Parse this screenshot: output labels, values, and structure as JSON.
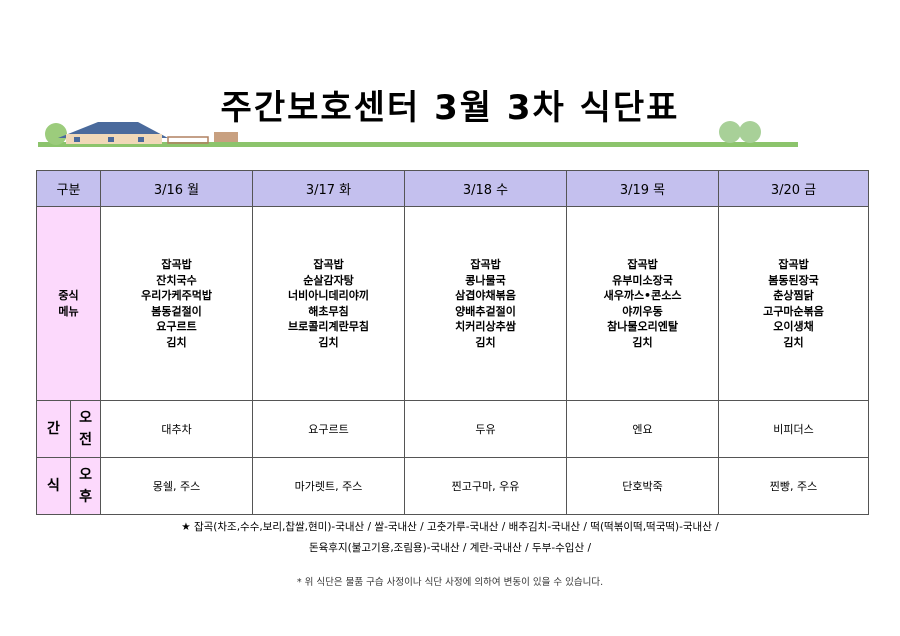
{
  "title": "주간보호센터 3월 3차 식단표",
  "header": {
    "label": "구분",
    "days": [
      "3/16 월",
      "3/17 화",
      "3/18 수",
      "3/19 목",
      "3/20 금"
    ]
  },
  "lunch": {
    "label1": "중식",
    "label2": "메뉴",
    "menus": [
      [
        "잡곡밥",
        "잔치국수",
        "우리가케주먹밥",
        "봄동겉절이",
        "요구르트",
        "김치"
      ],
      [
        "잡곡밥",
        "순살감자탕",
        "너비아니데리야끼",
        "해초무침",
        "브로콜리계란무침",
        "김치"
      ],
      [
        "잡곡밥",
        "콩나물국",
        "삼겹야채볶음",
        "양배추겉절이",
        "치커리상추쌈",
        "김치"
      ],
      [
        "잡곡밥",
        "유부미소장국",
        "새우까스•콘소스",
        "야끼우동",
        "참나물오리엔탈",
        "김치"
      ],
      [
        "잡곡밥",
        "봄동된장국",
        "춘상찜닭",
        "고구마순볶음",
        "오이생채",
        "김치"
      ]
    ]
  },
  "snack": {
    "label_top": "간",
    "label_bottom": "식",
    "am_label": [
      "오",
      "전"
    ],
    "pm_label": [
      "오",
      "후"
    ],
    "am": [
      "대추차",
      "요구르트",
      "두유",
      "엔요",
      "비피더스"
    ],
    "pm": [
      "몽쉘, 주스",
      "마가렛트, 주스",
      "찐고구마, 우유",
      "단호박죽",
      "찐빵, 주스"
    ]
  },
  "notes": {
    "origin_line1": "★ 잡곡(차조,수수,보리,찹쌀,현미)-국내산 / 쌀-국내산 / 고춧가루-국내산 / 배추김치-국내산 / 떡(떡볶이떡,떡국떡)-국내산 /",
    "origin_line2": "돈육후지(불고기용,조림용)-국내산 / 계란-국내산 / 두부-수입산 /",
    "disclaimer": "* 위 식단은 물품 구습 사정이나 식단 사정에 의하여 변동이 있을 수 있습니다."
  },
  "colors": {
    "header_bg": "#c4c0ee",
    "label_bg": "#fcd9fc"
  }
}
